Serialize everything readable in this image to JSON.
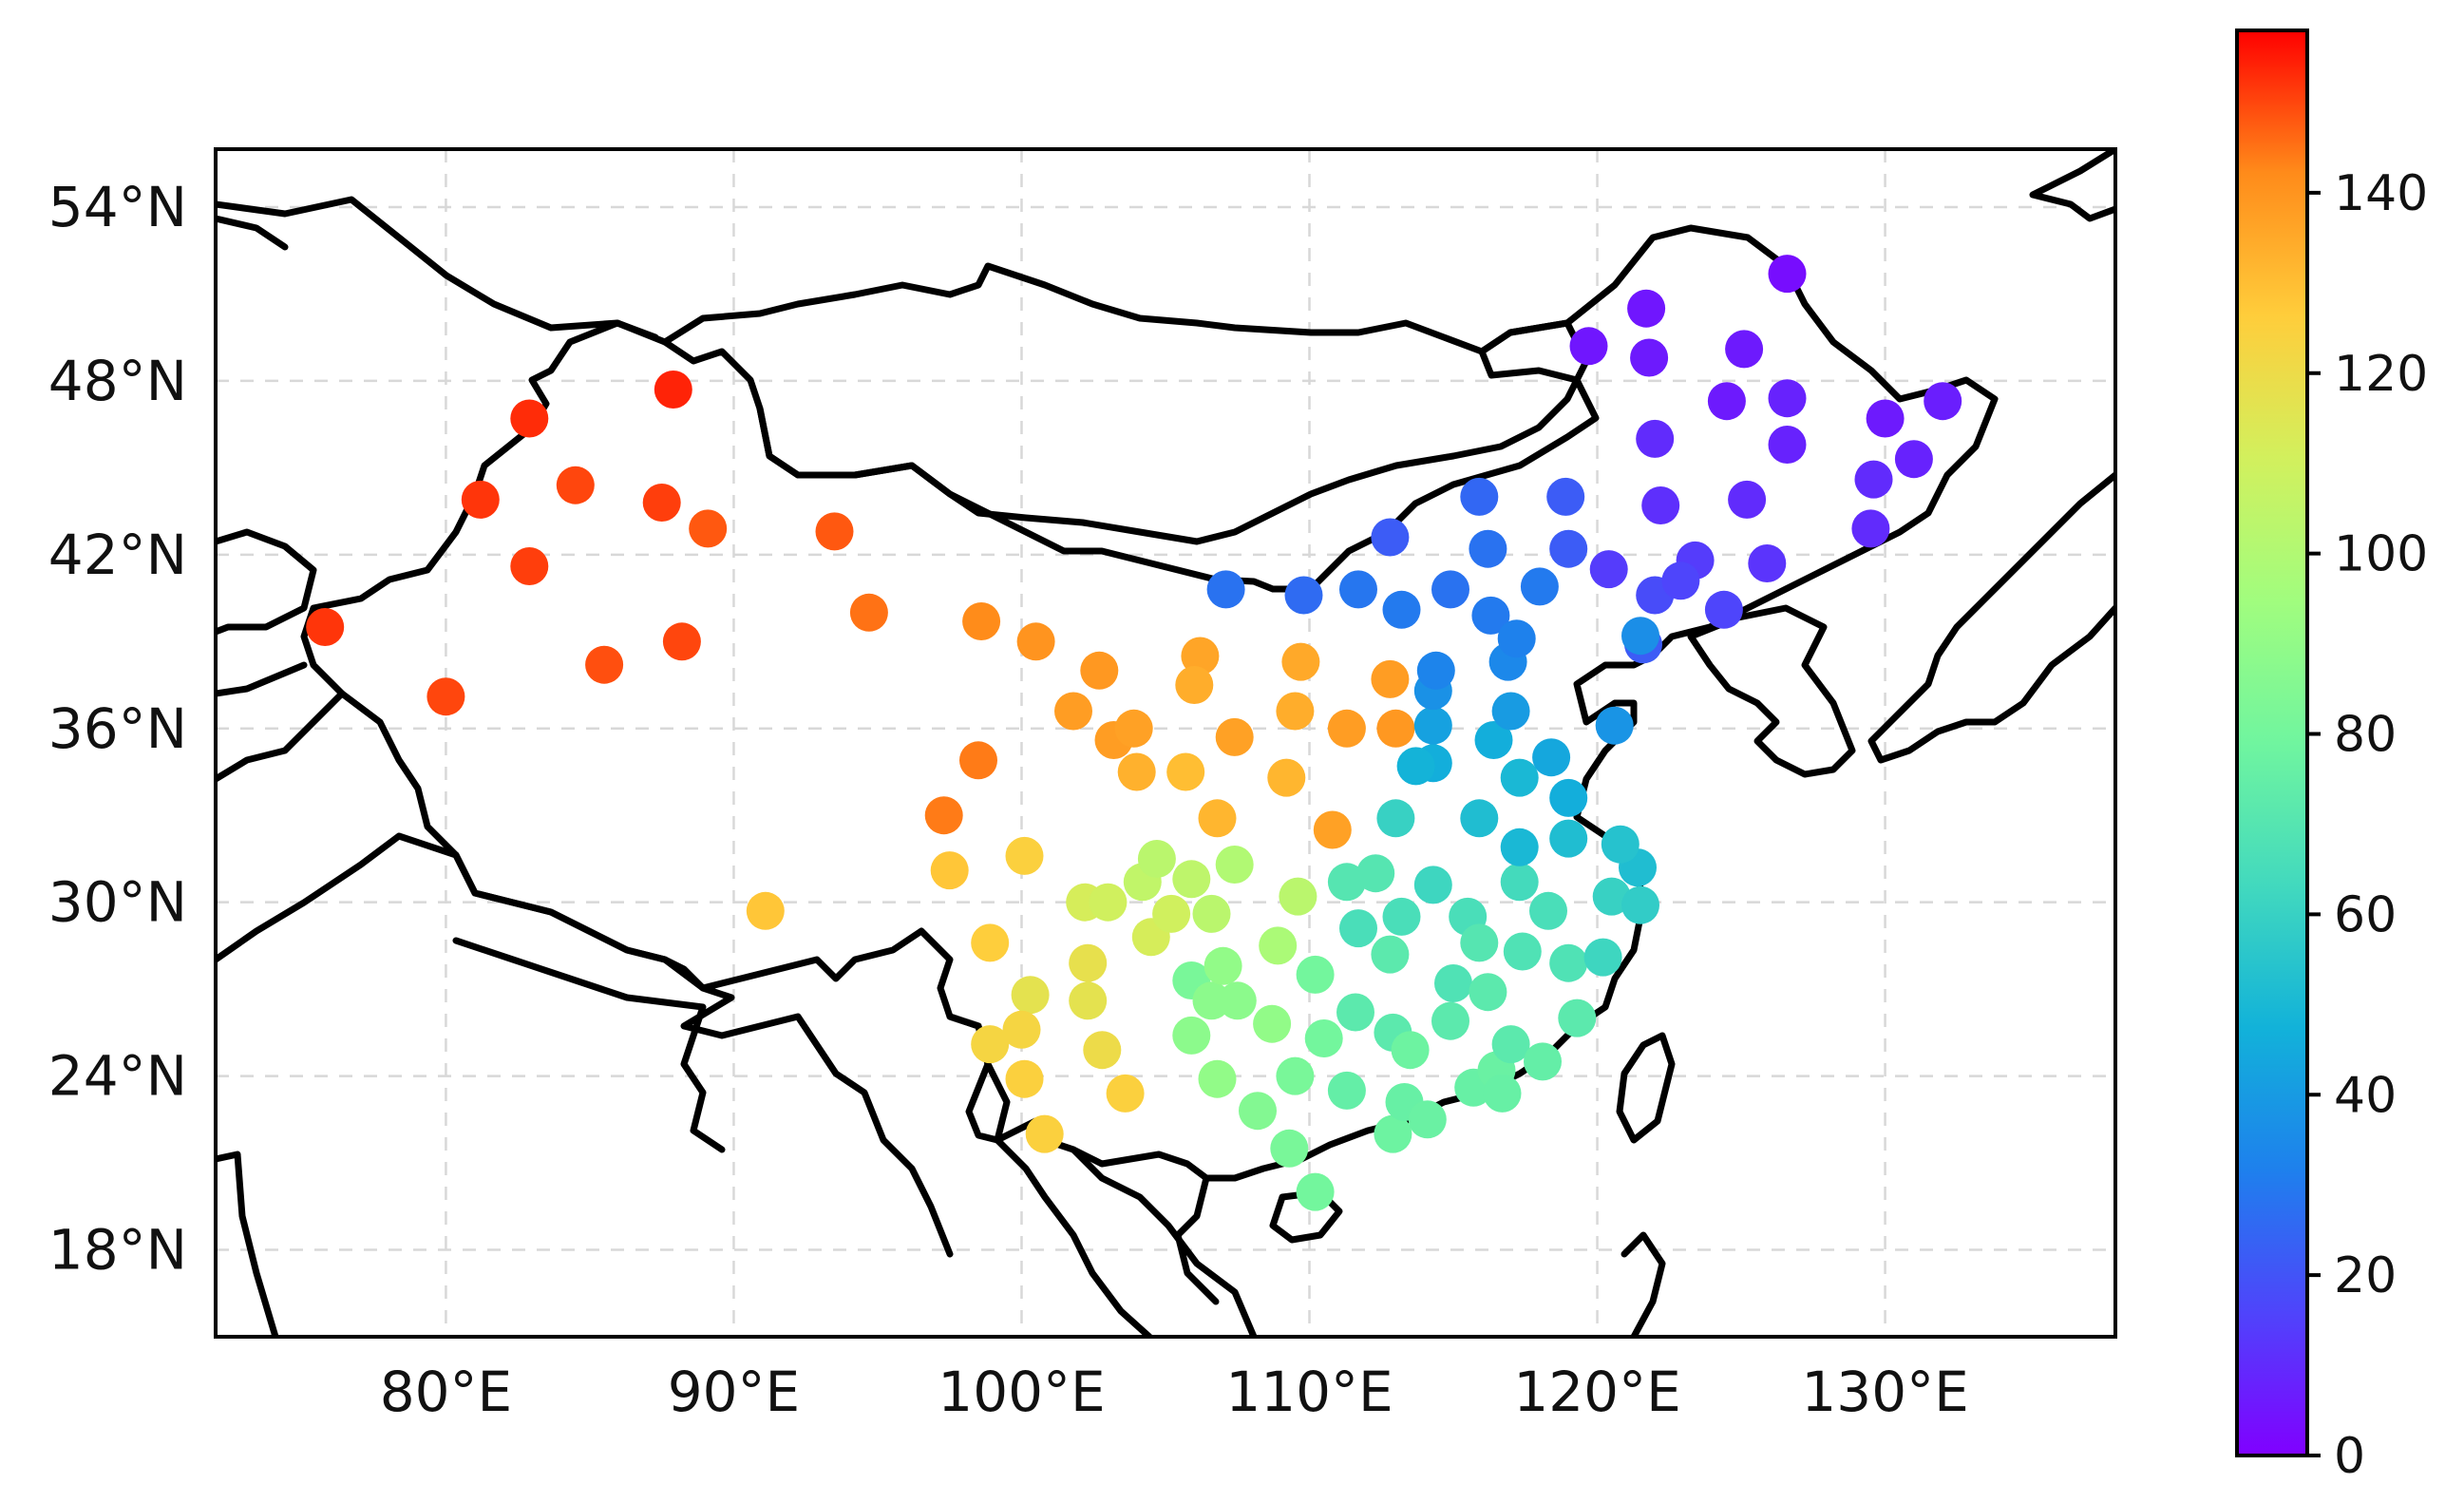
{
  "map": {
    "extent": {
      "lon": [
        72,
        138
      ],
      "lat": [
        15,
        56
      ]
    },
    "x_ticks": [
      {
        "value": 80,
        "label": "80°E"
      },
      {
        "value": 90,
        "label": "90°E"
      },
      {
        "value": 100,
        "label": "100°E"
      },
      {
        "value": 110,
        "label": "110°E"
      },
      {
        "value": 120,
        "label": "120°E"
      },
      {
        "value": 130,
        "label": "130°E"
      }
    ],
    "y_ticks": [
      {
        "value": 18,
        "label": "18°N"
      },
      {
        "value": 24,
        "label": "24°N"
      },
      {
        "value": 30,
        "label": "30°N"
      },
      {
        "value": 36,
        "label": "36°N"
      },
      {
        "value": 42,
        "label": "42°N"
      },
      {
        "value": 48,
        "label": "48°N"
      },
      {
        "value": 54,
        "label": "54°N"
      }
    ],
    "grid": true,
    "colormap": "rainbow",
    "border_color": "#000000"
  },
  "colorbar": {
    "range": [
      0,
      158
    ],
    "ticks": [
      {
        "value": 0,
        "label": "0"
      },
      {
        "value": 20,
        "label": "20"
      },
      {
        "value": 40,
        "label": "40"
      },
      {
        "value": 60,
        "label": "60"
      },
      {
        "value": 80,
        "label": "80"
      },
      {
        "value": 100,
        "label": "100"
      },
      {
        "value": 120,
        "label": "120"
      },
      {
        "value": 140,
        "label": "140"
      }
    ]
  },
  "stations": [
    [
      75.8,
      39.5,
      152
    ],
    [
      80,
      37.1,
      150
    ],
    [
      81.2,
      43.9,
      152
    ],
    [
      82.9,
      46.7,
      153
    ],
    [
      82.9,
      41.6,
      151
    ],
    [
      84.5,
      44.4,
      150
    ],
    [
      85.5,
      38.2,
      149
    ],
    [
      87.5,
      43.8,
      151
    ],
    [
      88.2,
      39,
      150
    ],
    [
      89.1,
      42.9,
      148
    ],
    [
      87.9,
      47.7,
      154
    ],
    [
      93.5,
      42.8,
      148
    ],
    [
      94.7,
      40,
      145
    ],
    [
      98.6,
      39.7,
      142
    ],
    [
      100.5,
      39,
      140
    ],
    [
      102.7,
      38,
      139
    ],
    [
      101.8,
      36.6,
      138
    ],
    [
      103.2,
      35.6,
      138
    ],
    [
      103.9,
      36,
      137
    ],
    [
      104,
      34.5,
      133
    ],
    [
      98.5,
      34.9,
      144
    ],
    [
      97.3,
      33,
      144
    ],
    [
      97.5,
      31.1,
      128
    ],
    [
      91.1,
      29.7,
      128
    ],
    [
      98.9,
      28.6,
      126
    ],
    [
      100.1,
      31.6,
      125
    ],
    [
      106.2,
      38.5,
      136
    ],
    [
      106,
      37.5,
      134
    ],
    [
      105.7,
      34.5,
      130
    ],
    [
      107.4,
      35.7,
      137
    ],
    [
      106.8,
      32.9,
      132
    ],
    [
      109.2,
      34.3,
      132
    ],
    [
      109.5,
      36.6,
      134
    ],
    [
      109.7,
      38.3,
      135
    ],
    [
      111.3,
      36,
      138
    ],
    [
      112.8,
      37.7,
      138
    ],
    [
      113,
      36,
      139
    ],
    [
      110.8,
      32.5,
      137
    ],
    [
      104.2,
      30.7,
      105
    ],
    [
      104.7,
      31.5,
      103
    ],
    [
      105.9,
      30.8,
      104
    ],
    [
      107.4,
      31.3,
      100
    ],
    [
      109.6,
      30.2,
      103
    ],
    [
      102.2,
      30,
      112
    ],
    [
      103,
      30,
      110
    ],
    [
      102.3,
      27.9,
      118
    ],
    [
      102.3,
      26.6,
      117
    ],
    [
      100.3,
      26.8,
      117
    ],
    [
      100,
      25.6,
      123
    ],
    [
      98.9,
      25.1,
      123
    ],
    [
      100.1,
      23.9,
      125
    ],
    [
      100.8,
      22,
      125
    ],
    [
      102.8,
      24.9,
      120
    ],
    [
      103.6,
      23.4,
      125
    ],
    [
      104.5,
      28.8,
      112
    ],
    [
      105.2,
      29.6,
      110
    ],
    [
      105.9,
      27.3,
      82
    ],
    [
      106.6,
      29.6,
      103
    ],
    [
      106.6,
      26.6,
      88
    ],
    [
      107,
      27.8,
      90
    ],
    [
      105.9,
      25.4,
      88
    ],
    [
      107.5,
      26.6,
      88
    ],
    [
      108.9,
      28.5,
      98
    ],
    [
      108.7,
      25.8,
      90
    ],
    [
      106.8,
      23.9,
      90
    ],
    [
      108.2,
      22.8,
      85
    ],
    [
      109.5,
      24,
      82
    ],
    [
      109.3,
      21.5,
      82
    ],
    [
      110.2,
      20,
      80
    ],
    [
      110.2,
      27.5,
      80
    ],
    [
      110.5,
      25.3,
      80
    ],
    [
      111.3,
      30.7,
      70
    ],
    [
      111.7,
      29.1,
      66
    ],
    [
      111.3,
      23.5,
      75
    ],
    [
      112.9,
      22,
      78
    ],
    [
      111.6,
      26.2,
      72
    ],
    [
      112.8,
      28.2,
      72
    ],
    [
      112.9,
      25.5,
      72
    ],
    [
      113.3,
      23.1,
      76
    ],
    [
      112.3,
      31,
      70
    ],
    [
      113,
      32.9,
      60
    ],
    [
      114.3,
      30.6,
      62
    ],
    [
      113.5,
      24.9,
      78
    ],
    [
      113.2,
      29.5,
      66
    ],
    [
      114.1,
      22.5,
      77
    ],
    [
      115,
      27.2,
      68
    ],
    [
      115.5,
      29.5,
      66
    ],
    [
      115.9,
      28.6,
      70
    ],
    [
      116.2,
      26.9,
      72
    ],
    [
      115.7,
      23.6,
      76
    ],
    [
      114.9,
      25.9,
      72
    ],
    [
      116.5,
      24.2,
      77
    ],
    [
      117,
      25.1,
      72
    ],
    [
      116.7,
      23.4,
      76
    ],
    [
      118.1,
      24.5,
      75
    ],
    [
      119.3,
      26,
      72
    ],
    [
      119,
      27.9,
      68
    ],
    [
      117.3,
      30.7,
      64
    ],
    [
      117.4,
      28.3,
      68
    ],
    [
      118.3,
      29.7,
      66
    ],
    [
      120.2,
      28.1,
      62
    ],
    [
      120.5,
      30.2,
      60
    ],
    [
      121.5,
      29.9,
      58
    ],
    [
      121.4,
      31.2,
      52
    ],
    [
      119,
      32.2,
      52
    ],
    [
      120.8,
      32,
      54
    ],
    [
      117.3,
      31.9,
      50
    ],
    [
      115.9,
      32.9,
      52
    ],
    [
      119,
      33.6,
      46
    ],
    [
      117.3,
      34.3,
      50
    ],
    [
      116.4,
      35.6,
      46
    ],
    [
      117,
      36.6,
      40
    ],
    [
      118.4,
      35,
      44
    ],
    [
      114.3,
      34.8,
      46
    ],
    [
      113.7,
      34.7,
      48
    ],
    [
      114.3,
      36.1,
      42
    ],
    [
      114.3,
      37.3,
      37
    ],
    [
      114.4,
      38,
      33
    ],
    [
      113.2,
      40.1,
      30
    ],
    [
      111.7,
      40.8,
      29
    ],
    [
      109.8,
      40.6,
      26
    ],
    [
      107.1,
      40.8,
      28
    ],
    [
      112.8,
      42.6,
      22
    ],
    [
      114.9,
      40.8,
      28
    ],
    [
      116.3,
      39.9,
      30
    ],
    [
      116.9,
      38.3,
      34
    ],
    [
      117.2,
      39.1,
      32
    ],
    [
      118,
      40.9,
      30
    ],
    [
      116.2,
      42.2,
      28
    ],
    [
      119,
      42.2,
      22
    ],
    [
      115.9,
      44,
      25
    ],
    [
      118.9,
      44,
      22
    ],
    [
      120.6,
      36.1,
      38
    ],
    [
      120.4,
      41.5,
      14
    ],
    [
      121.6,
      38.9,
      22
    ],
    [
      122,
      40.6,
      18
    ],
    [
      123.4,
      41.8,
      14
    ],
    [
      124.4,
      40.1,
      16
    ],
    [
      125.9,
      41.7,
      12
    ],
    [
      125.2,
      43.9,
      10
    ],
    [
      122.2,
      43.7,
      11
    ],
    [
      126.6,
      45.8,
      8
    ],
    [
      126.6,
      47.4,
      8
    ],
    [
      124.5,
      47.3,
      6
    ],
    [
      122,
      46,
      10
    ],
    [
      121.8,
      48.8,
      6
    ],
    [
      121.7,
      50.5,
      5
    ],
    [
      119.7,
      49.2,
      5
    ],
    [
      125.1,
      49.1,
      6
    ],
    [
      126.6,
      51.7,
      3
    ],
    [
      130,
      46.7,
      6
    ],
    [
      131,
      45.3,
      8
    ],
    [
      132,
      47.3,
      7
    ],
    [
      129.6,
      44.6,
      10
    ],
    [
      129.5,
      42.9,
      10
    ],
    [
      122.9,
      41.1,
      16
    ],
    [
      121.5,
      39.2,
      36
    ]
  ]
}
